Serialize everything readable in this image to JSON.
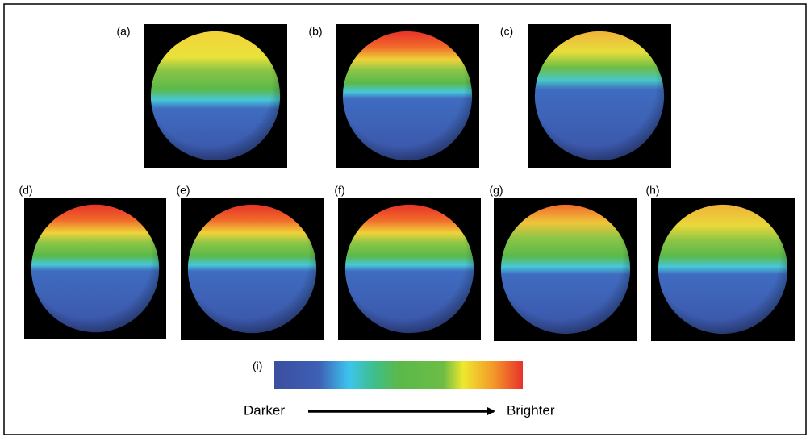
{
  "panels": {
    "labels": [
      "(a)",
      "(b)",
      "(c)",
      "(d)",
      "(e)",
      "(f)",
      "(g)",
      "(h)"
    ]
  },
  "colorbar": {
    "label": "(i)",
    "left": "Darker",
    "right": "Brighter"
  }
}
